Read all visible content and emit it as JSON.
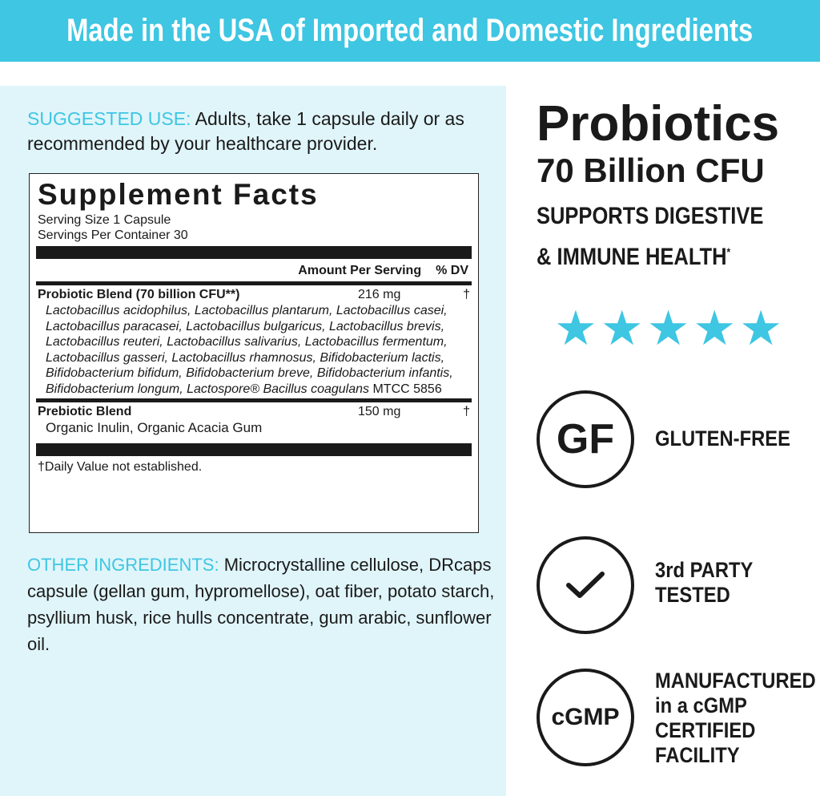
{
  "banner": {
    "text": "Made in the USA of Imported and Domestic Ingredients"
  },
  "colors": {
    "accent": "#3ec6e2",
    "panel": "#e0f5fa"
  },
  "suggested_use": {
    "label": "SUGGESTED USE:",
    "text": " Adults, take 1 capsule daily or as recommended by your healthcare provider."
  },
  "facts": {
    "title": "Supplement Facts",
    "serving_size": "Serving Size 1 Capsule",
    "servings": "Servings Per Container 30",
    "amount_header": "Amount Per Serving",
    "dv_header": "% DV",
    "rows": [
      {
        "name": "Probiotic Blend (70 billion CFU**)",
        "amount": "216 mg",
        "dv": "†",
        "detail": "Lactobacillus acidophilus, Lactobacillus plantarum, Lactobacillus casei, Lactobacillus paracasei, Lactobacillus bulgaricus, Lactobacillus brevis, Lactobacillus reuteri, Lactobacillus salivarius, Lactobacillus fermentum, Lactobacillus gasseri, Lactobacillus rhamnosus, Bifidobacterium lactis, Bifidobacterium bifidum, Bifidobacterium breve, Bifidobacterium infantis, Bifidobacterium longum, Lactospore® Bacillus coagulans",
        "detail_tail": " MTCC 5856"
      },
      {
        "name": "Prebiotic Blend",
        "amount": "150 mg",
        "dv": "†",
        "detail": "Organic Inulin, Organic Acacia Gum"
      }
    ],
    "footnote": "†Daily Value not established."
  },
  "other_ingredients": {
    "label": "OTHER INGREDIENTS:",
    "text": " Microcrystalline cellulose, DRcaps capsule (gellan gum, hypromellose), oat fiber, potato starch, psyllium husk, rice hulls concentrate, gum arabic, sunflower oil."
  },
  "product": {
    "title": "Probiotics",
    "cfu": "70 Billion CFU",
    "supports_1": "SUPPORTS DIGESTIVE",
    "supports_2": "& IMMUNE HEALTH",
    "supports_mark": "*"
  },
  "rating": {
    "stars": 5,
    "max": 5
  },
  "badges": [
    {
      "icon": "GF",
      "label_1": "GLUTEN-FREE"
    },
    {
      "icon": "check-icon",
      "label_1": "3rd PARTY",
      "label_2": "TESTED"
    },
    {
      "icon": "cGMP",
      "label_1": "MANUFACTURED",
      "label_2": "in a cGMP",
      "label_3": "CERTIFIED",
      "label_4": "FACILITY"
    }
  ]
}
